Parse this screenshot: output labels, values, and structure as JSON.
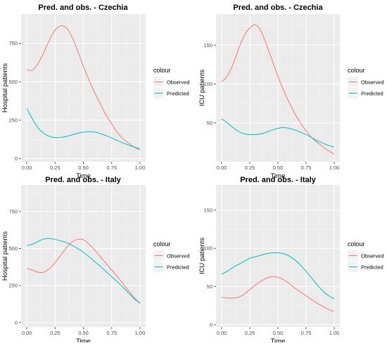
{
  "chart_data": [
    {
      "type": "line",
      "title": "Pred. and obs. - Czechia",
      "xlabel": "Time",
      "ylabel": "Hospital patients",
      "xlim": [
        0,
        1
      ],
      "ylim": [
        -20,
        940
      ],
      "x_ticks": [
        "0.00",
        "0.25",
        "0.50",
        "0.75",
        "1.00"
      ],
      "y_ticks": [
        0,
        250,
        500,
        750
      ],
      "legend": {
        "title": "colour",
        "position": "right"
      },
      "grid": true,
      "x": [
        0.0,
        0.05,
        0.1,
        0.15,
        0.2,
        0.25,
        0.3,
        0.35,
        0.4,
        0.45,
        0.5,
        0.55,
        0.6,
        0.65,
        0.7,
        0.75,
        0.8,
        0.85,
        0.9,
        0.95,
        1.0
      ],
      "series": [
        {
          "name": "Observed",
          "color": "#F8766D",
          "values": [
            578,
            575,
            620,
            690,
            770,
            835,
            863,
            850,
            790,
            700,
            600,
            510,
            430,
            355,
            285,
            225,
            170,
            130,
            100,
            75,
            55
          ]
        },
        {
          "name": "Predicted",
          "color": "#00BFC4",
          "values": [
            325,
            258,
            200,
            165,
            145,
            137,
            138,
            145,
            155,
            165,
            173,
            175,
            173,
            163,
            150,
            135,
            118,
            102,
            88,
            75,
            65
          ]
        }
      ]
    },
    {
      "type": "line",
      "title": "Pred. and obs. - Czechia",
      "xlabel": "Time",
      "ylabel": "ICU patients",
      "xlim": [
        0,
        1
      ],
      "ylim": [
        0,
        190
      ],
      "x_ticks": [
        "0.00",
        "0.25",
        "0.50",
        "0.75",
        "1.00"
      ],
      "y_ticks": [
        50,
        100,
        150
      ],
      "legend": {
        "title": "colour",
        "position": "right"
      },
      "grid": true,
      "x": [
        0.0,
        0.05,
        0.1,
        0.15,
        0.2,
        0.25,
        0.3,
        0.35,
        0.4,
        0.45,
        0.5,
        0.55,
        0.6,
        0.65,
        0.7,
        0.75,
        0.8,
        0.85,
        0.9,
        0.95,
        1.0
      ],
      "series": [
        {
          "name": "Observed",
          "color": "#F8766D",
          "values": [
            103,
            110,
            125,
            145,
            162,
            172,
            176,
            168,
            150,
            130,
            110,
            92,
            76,
            62,
            50,
            40,
            31,
            25,
            19,
            14,
            10
          ]
        },
        {
          "name": "Predicted",
          "color": "#00BFC4",
          "values": [
            55,
            50,
            44,
            39,
            36,
            35,
            35,
            36,
            38,
            41,
            43,
            44,
            43,
            41,
            38,
            35,
            31,
            27,
            24,
            21,
            19
          ]
        }
      ]
    },
    {
      "type": "line",
      "title": "Pred. and obs. - Italy",
      "xlabel": "Time",
      "ylabel": "Hospital patients",
      "xlim": [
        0,
        1
      ],
      "ylim": [
        -30,
        930
      ],
      "x_ticks": [
        "0.00",
        "0.25",
        "0.50",
        "0.75",
        "1.00"
      ],
      "y_ticks": [
        0,
        250,
        500,
        750
      ],
      "legend": {
        "title": "colour",
        "position": "right"
      },
      "grid": true,
      "x": [
        0.0,
        0.05,
        0.1,
        0.15,
        0.2,
        0.25,
        0.3,
        0.35,
        0.4,
        0.45,
        0.5,
        0.55,
        0.6,
        0.65,
        0.7,
        0.75,
        0.8,
        0.85,
        0.9,
        0.95,
        1.0
      ],
      "series": [
        {
          "name": "Observed",
          "color": "#F8766D",
          "values": [
            365,
            355,
            340,
            340,
            365,
            405,
            455,
            505,
            545,
            562,
            560,
            530,
            490,
            445,
            400,
            355,
            310,
            262,
            215,
            168,
            128
          ]
        },
        {
          "name": "Predicted",
          "color": "#00BFC4",
          "values": [
            520,
            530,
            548,
            565,
            568,
            562,
            552,
            540,
            522,
            500,
            475,
            445,
            412,
            380,
            345,
            310,
            275,
            238,
            200,
            160,
            133
          ]
        }
      ]
    },
    {
      "type": "line",
      "title": "Pred. and obs. - Italy",
      "xlabel": "Time",
      "ylabel": "ICU patients",
      "xlim": [
        0,
        1
      ],
      "ylim": [
        -3,
        183
      ],
      "x_ticks": [
        "0.00",
        "0.25",
        "0.50",
        "0.75",
        "1.00"
      ],
      "y_ticks": [
        0,
        50,
        100,
        150
      ],
      "legend": {
        "title": "colour",
        "position": "right"
      },
      "grid": true,
      "x": [
        0.0,
        0.05,
        0.1,
        0.15,
        0.2,
        0.25,
        0.3,
        0.35,
        0.4,
        0.45,
        0.5,
        0.55,
        0.6,
        0.65,
        0.7,
        0.75,
        0.8,
        0.85,
        0.9,
        0.95,
        1.0
      ],
      "series": [
        {
          "name": "Observed",
          "color": "#F8766D",
          "values": [
            36,
            35,
            35,
            36,
            40,
            46,
            52,
            57,
            61,
            63,
            62,
            59,
            54,
            48,
            43,
            38,
            33,
            28,
            24,
            20,
            17
          ]
        },
        {
          "name": "Predicted",
          "color": "#00BFC4",
          "values": [
            66,
            70,
            75,
            79,
            83,
            87,
            89,
            91,
            93,
            94,
            94,
            93,
            90,
            85,
            78,
            70,
            61,
            52,
            44,
            38,
            34
          ]
        }
      ]
    }
  ]
}
